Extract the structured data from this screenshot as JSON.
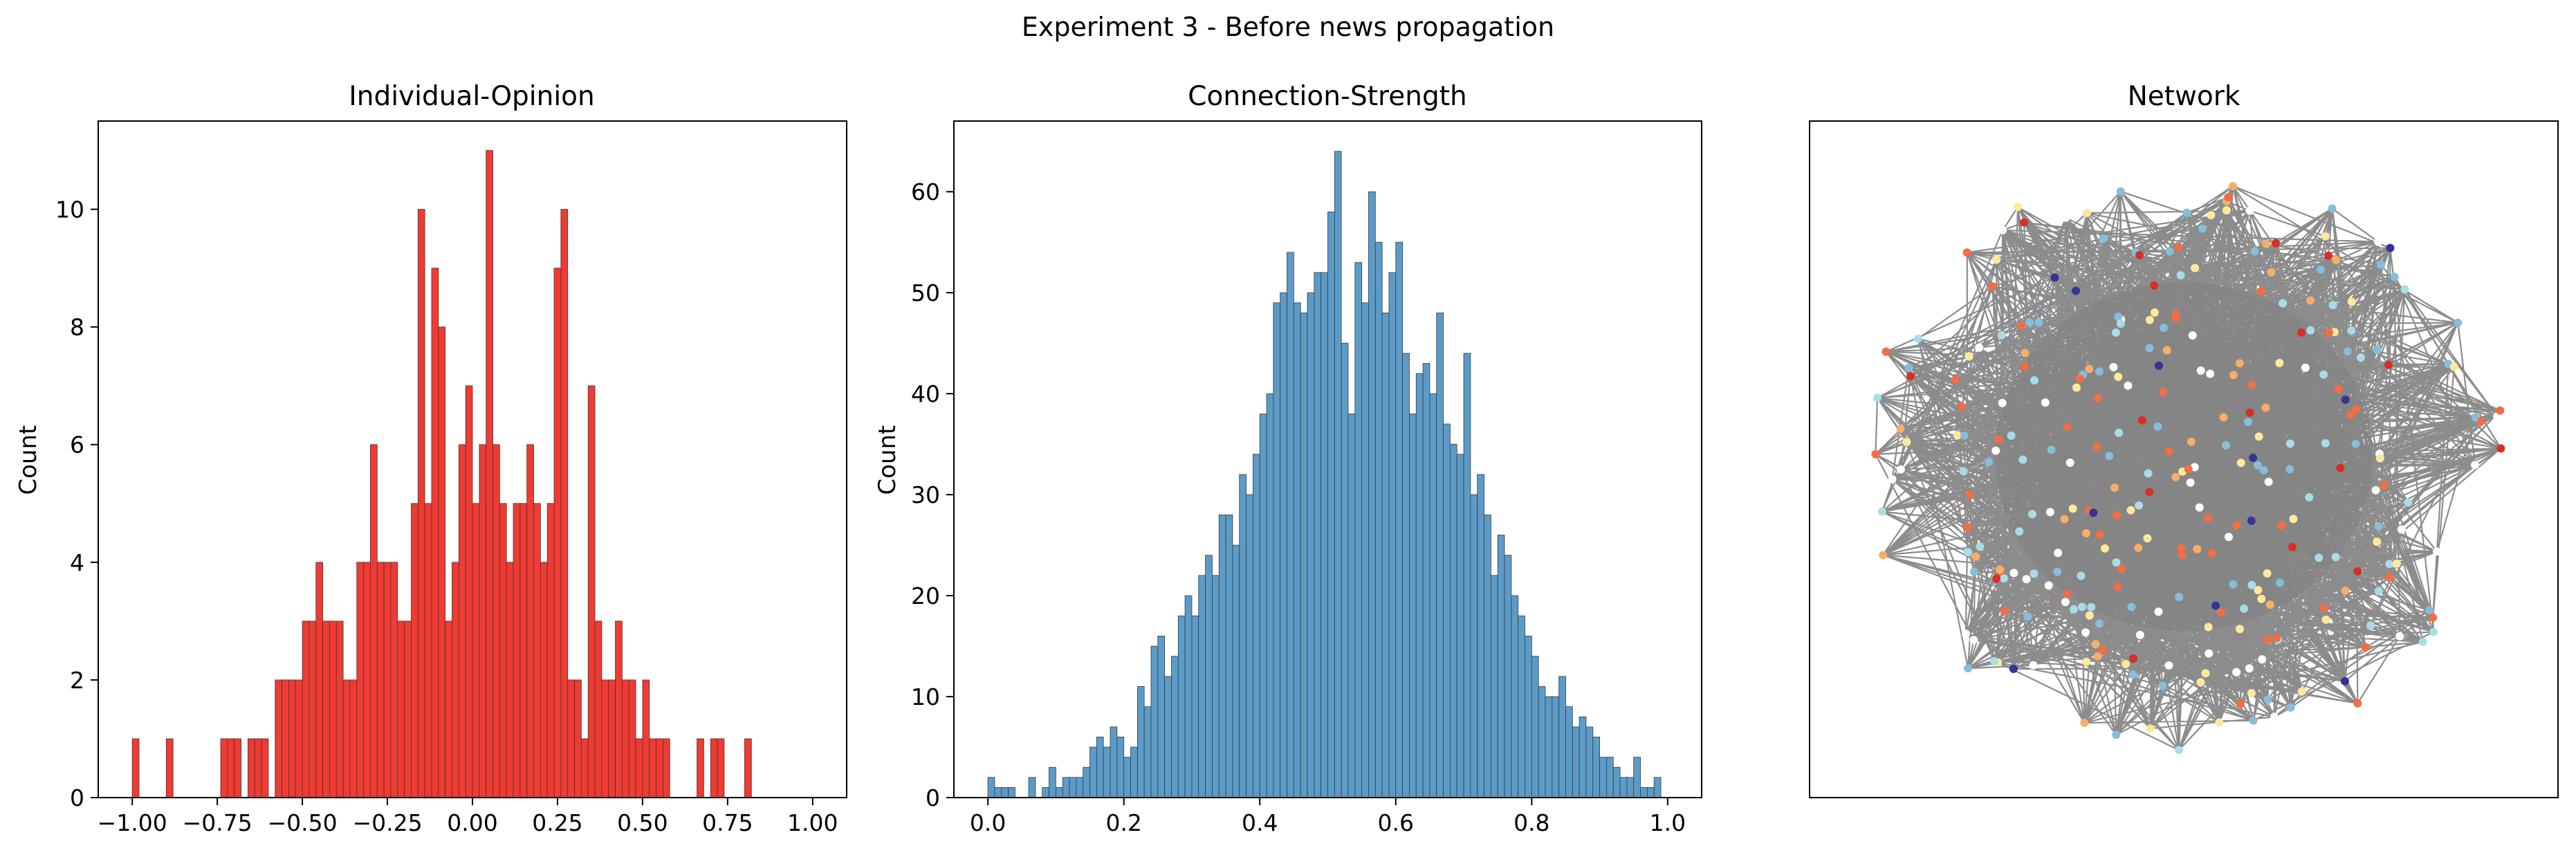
{
  "figure": {
    "suptitle": "Experiment 3 - Before news propagation"
  },
  "colors": {
    "opinion_bar": "#f03a32",
    "strength_bar": "#5b9bc8",
    "edge": "#808080"
  },
  "chart_data": [
    {
      "type": "bar",
      "title": "Individual-Opinion",
      "xlabel": "",
      "ylabel": "Count",
      "xlim": [
        -1.1,
        1.1
      ],
      "ylim": [
        0,
        11.5
      ],
      "bin_width": 0.02,
      "xticks": [
        -1.0,
        -0.75,
        -0.5,
        -0.25,
        0.0,
        0.25,
        0.5,
        0.75,
        1.0
      ],
      "xtick_labels": [
        "−1.00",
        "−0.75",
        "−0.50",
        "−0.25",
        "0.00",
        "0.25",
        "0.50",
        "0.75",
        "1.00"
      ],
      "yticks": [
        0,
        2,
        4,
        6,
        8,
        10
      ],
      "ytick_labels": [
        "0",
        "2",
        "4",
        "6",
        "8",
        "10"
      ],
      "x": [
        -0.99,
        -0.89,
        -0.73,
        -0.71,
        -0.69,
        -0.65,
        -0.63,
        -0.61,
        -0.57,
        -0.55,
        -0.53,
        -0.51,
        -0.49,
        -0.47,
        -0.45,
        -0.43,
        -0.41,
        -0.39,
        -0.37,
        -0.35,
        -0.33,
        -0.31,
        -0.29,
        -0.27,
        -0.25,
        -0.23,
        -0.21,
        -0.19,
        -0.17,
        -0.15,
        -0.13,
        -0.11,
        -0.09,
        -0.07,
        -0.05,
        -0.03,
        -0.01,
        0.01,
        0.03,
        0.05,
        0.07,
        0.09,
        0.11,
        0.13,
        0.15,
        0.17,
        0.19,
        0.21,
        0.23,
        0.25,
        0.27,
        0.29,
        0.31,
        0.33,
        0.35,
        0.37,
        0.39,
        0.41,
        0.43,
        0.45,
        0.47,
        0.49,
        0.51,
        0.53,
        0.55,
        0.57,
        0.67,
        0.71,
        0.73,
        0.81
      ],
      "values": [
        1,
        1,
        1,
        1,
        1,
        1,
        1,
        1,
        2,
        2,
        2,
        2,
        3,
        3,
        4,
        3,
        3,
        3,
        2,
        2,
        4,
        4,
        6,
        4,
        4,
        4,
        3,
        3,
        5,
        10,
        5,
        9,
        8,
        3,
        4,
        6,
        7,
        5,
        6,
        11,
        6,
        5,
        4,
        5,
        5,
        6,
        5,
        4,
        5,
        9,
        10,
        2,
        2,
        1,
        7,
        3,
        2,
        2,
        3,
        2,
        2,
        1,
        2,
        1,
        1,
        1,
        1,
        1,
        1,
        1
      ]
    },
    {
      "type": "bar",
      "title": "Connection-Strength",
      "xlabel": "",
      "ylabel": "Count",
      "xlim": [
        -0.05,
        1.05
      ],
      "ylim": [
        0,
        67
      ],
      "bin_width": 0.01,
      "xticks": [
        0.0,
        0.2,
        0.4,
        0.6,
        0.8,
        1.0
      ],
      "xtick_labels": [
        "0.0",
        "0.2",
        "0.4",
        "0.6",
        "0.8",
        "1.0"
      ],
      "yticks": [
        0,
        10,
        20,
        30,
        40,
        50,
        60
      ],
      "ytick_labels": [
        "0",
        "10",
        "20",
        "30",
        "40",
        "50",
        "60"
      ],
      "x": [
        0.005,
        0.015,
        0.025,
        0.035,
        0.045,
        0.055,
        0.065,
        0.075,
        0.085,
        0.095,
        0.105,
        0.115,
        0.125,
        0.135,
        0.145,
        0.155,
        0.165,
        0.175,
        0.185,
        0.195,
        0.205,
        0.215,
        0.225,
        0.235,
        0.245,
        0.255,
        0.265,
        0.275,
        0.285,
        0.295,
        0.305,
        0.315,
        0.325,
        0.335,
        0.345,
        0.355,
        0.365,
        0.375,
        0.385,
        0.395,
        0.405,
        0.415,
        0.425,
        0.435,
        0.445,
        0.455,
        0.465,
        0.475,
        0.485,
        0.495,
        0.505,
        0.515,
        0.525,
        0.535,
        0.545,
        0.555,
        0.565,
        0.575,
        0.585,
        0.595,
        0.605,
        0.615,
        0.625,
        0.635,
        0.645,
        0.655,
        0.665,
        0.675,
        0.685,
        0.695,
        0.705,
        0.715,
        0.725,
        0.735,
        0.745,
        0.755,
        0.765,
        0.775,
        0.785,
        0.795,
        0.805,
        0.815,
        0.825,
        0.835,
        0.845,
        0.855,
        0.865,
        0.875,
        0.885,
        0.895,
        0.905,
        0.915,
        0.925,
        0.935,
        0.945,
        0.955,
        0.965,
        0.975,
        0.985,
        0.995
      ],
      "values": [
        2,
        1,
        1,
        1,
        0,
        0,
        2,
        0,
        1,
        3,
        1,
        2,
        2,
        2,
        3,
        5,
        6,
        5,
        7,
        6,
        4,
        5,
        11,
        9,
        15,
        16,
        12,
        14,
        18,
        20,
        18,
        22,
        24,
        22,
        28,
        28,
        25,
        32,
        30,
        34,
        38,
        40,
        49,
        50,
        54,
        49,
        48,
        50,
        52,
        52,
        58,
        64,
        45,
        38,
        53,
        49,
        60,
        55,
        48,
        52,
        55,
        44,
        38,
        42,
        43,
        40,
        48,
        37,
        35,
        34,
        44,
        30,
        32,
        28,
        22,
        26,
        24,
        20,
        18,
        16,
        14,
        11,
        10,
        10,
        12,
        9,
        7,
        8,
        7,
        6,
        4,
        4,
        3,
        2,
        2,
        4,
        1,
        1,
        2,
        0
      ]
    }
  ],
  "network": {
    "title": "Network",
    "node_colors": [
      "#ffffff",
      "#fde99b",
      "#a8dce6",
      "#86bddb",
      "#f6ae6a",
      "#f46d43",
      "#d62f27",
      "#e8e8e8",
      "#313695",
      "#ffffbf"
    ]
  }
}
